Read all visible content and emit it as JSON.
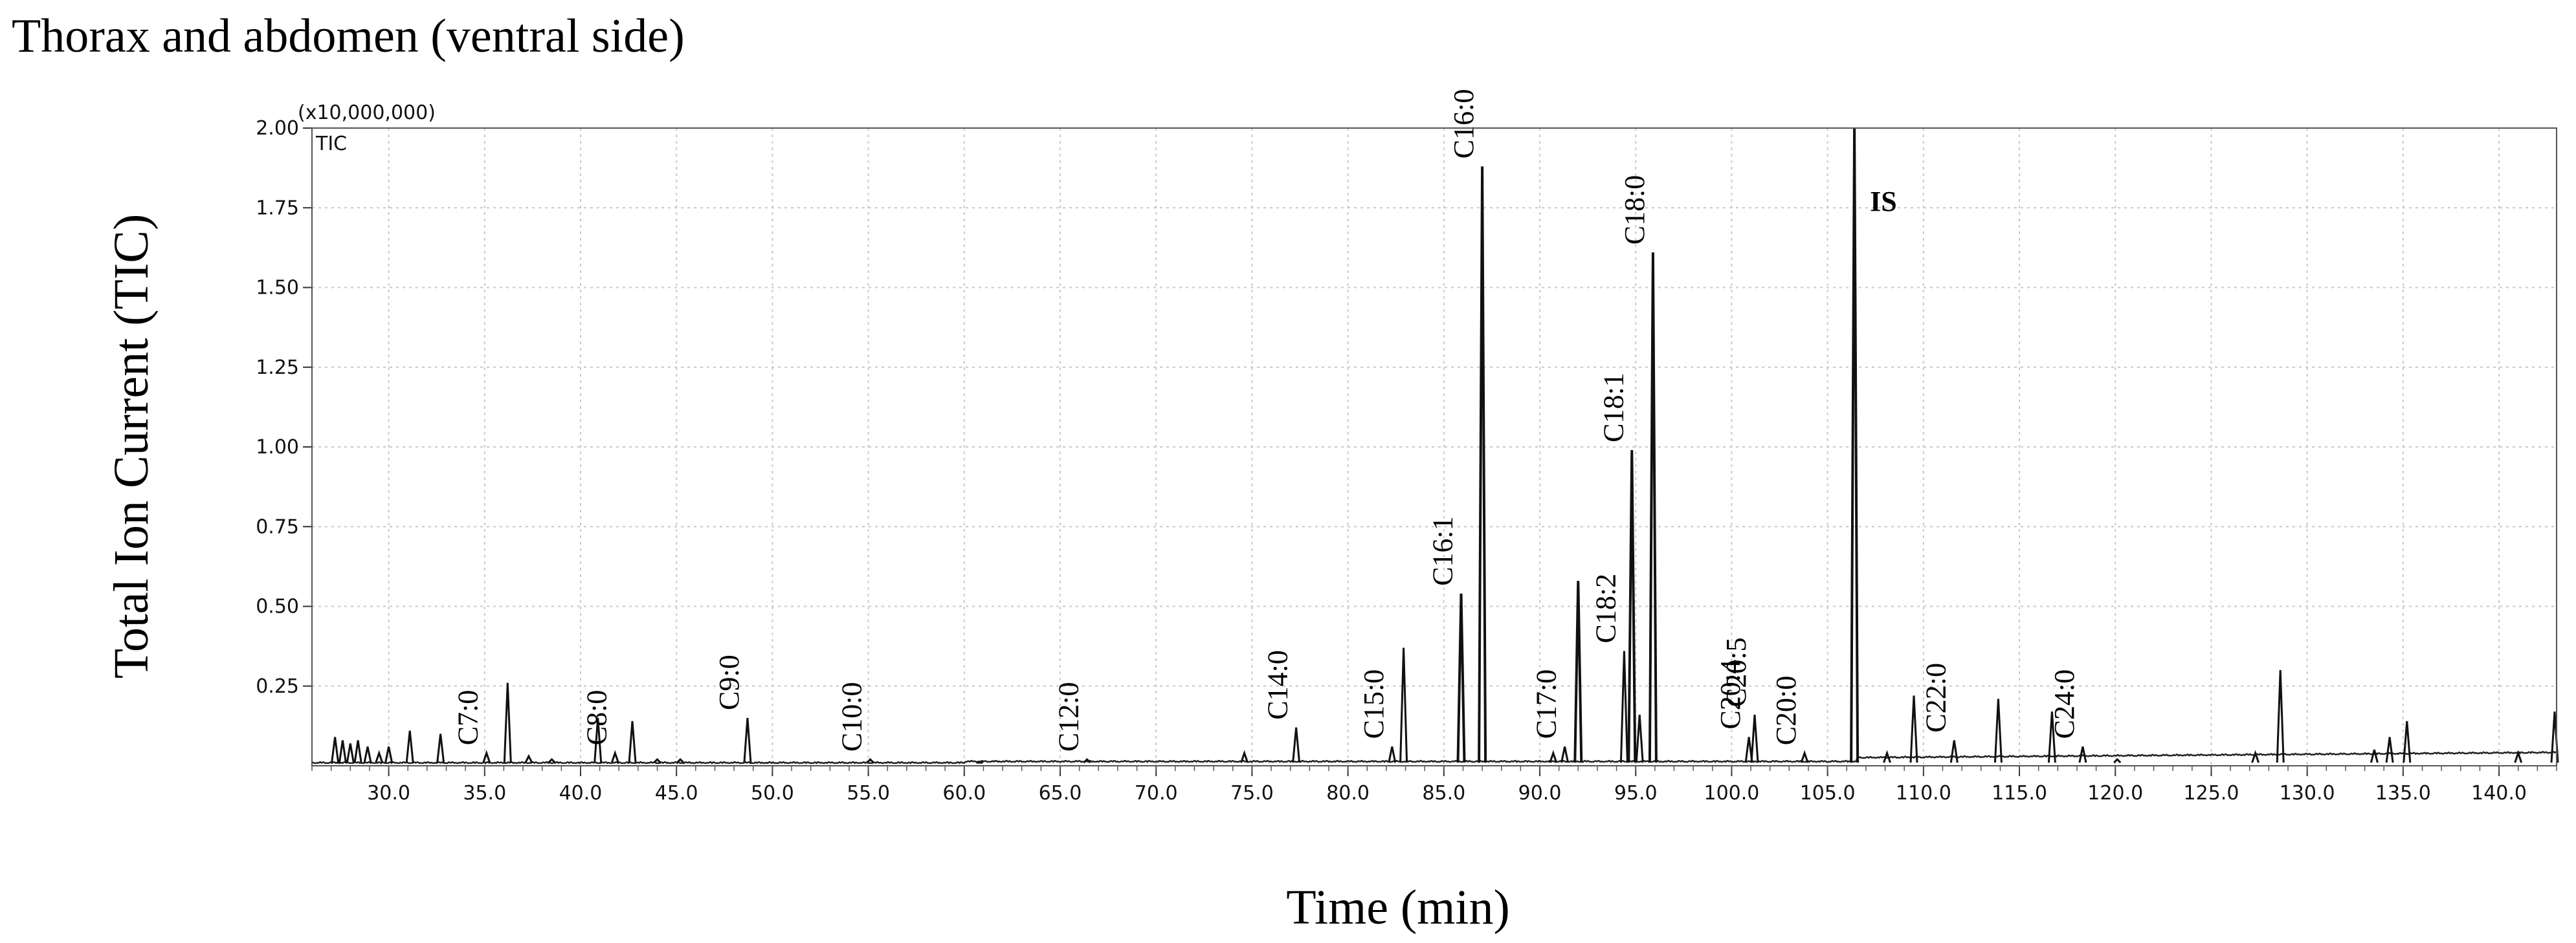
{
  "figure_title": "Thorax and abdomen (ventral side)",
  "chart_data": {
    "type": "line",
    "title": "Thorax and abdomen (ventral side)",
    "xlabel": "Time (min)",
    "ylabel": "Total Ion Current (TIC)",
    "y_multiplier": "(x10,000,000)",
    "trace_label": "TIC",
    "xlim": [
      26.0,
      143.0
    ],
    "ylim": [
      0.0,
      2.0
    ],
    "x_ticks": [
      "30.0",
      "35.0",
      "40.0",
      "45.0",
      "50.0",
      "55.0",
      "60.0",
      "65.0",
      "70.0",
      "75.0",
      "80.0",
      "85.0",
      "90.0",
      "95.0",
      "100.0",
      "105.0",
      "110.0",
      "115.0",
      "120.0",
      "125.0",
      "130.0",
      "135.0",
      "140.0"
    ],
    "y_ticks": [
      "2.00",
      "1.75",
      "1.50",
      "1.25",
      "1.00",
      "0.75",
      "0.50",
      "0.25"
    ],
    "grid": true,
    "peaks": [
      {
        "x": 27.2,
        "y": 0.09
      },
      {
        "x": 27.6,
        "y": 0.08
      },
      {
        "x": 28.0,
        "y": 0.07
      },
      {
        "x": 28.4,
        "y": 0.08
      },
      {
        "x": 28.9,
        "y": 0.06
      },
      {
        "x": 29.5,
        "y": 0.04
      },
      {
        "x": 30.0,
        "y": 0.06
      },
      {
        "x": 31.1,
        "y": 0.11
      },
      {
        "x": 32.7,
        "y": 0.1
      },
      {
        "x": 35.1,
        "y": 0.04,
        "label": "C7:0"
      },
      {
        "x": 36.2,
        "y": 0.26
      },
      {
        "x": 37.3,
        "y": 0.03
      },
      {
        "x": 38.5,
        "y": 0.02
      },
      {
        "x": 40.9,
        "y": 0.15
      },
      {
        "x": 41.8,
        "y": 0.04,
        "label": "C8:0"
      },
      {
        "x": 42.7,
        "y": 0.14
      },
      {
        "x": 44.0,
        "y": 0.02
      },
      {
        "x": 45.2,
        "y": 0.02
      },
      {
        "x": 48.7,
        "y": 0.15,
        "label": "C9:0"
      },
      {
        "x": 55.1,
        "y": 0.02,
        "label": "C10:0"
      },
      {
        "x": 60.8,
        "y": 0.01
      },
      {
        "x": 66.4,
        "y": 0.02,
        "label": "C12:0"
      },
      {
        "x": 74.6,
        "y": 0.04
      },
      {
        "x": 77.3,
        "y": 0.12,
        "label": "C14:0"
      },
      {
        "x": 82.3,
        "y": 0.06,
        "label": "C15:0"
      },
      {
        "x": 82.9,
        "y": 0.37
      },
      {
        "x": 85.9,
        "y": 0.54,
        "label": "C16:1"
      },
      {
        "x": 87.0,
        "y": 1.88,
        "label": "C16:0"
      },
      {
        "x": 90.7,
        "y": 0.04
      },
      {
        "x": 91.3,
        "y": 0.06,
        "label": "C17:0"
      },
      {
        "x": 92.0,
        "y": 0.58
      },
      {
        "x": 94.4,
        "y": 0.36,
        "label": "C18:2"
      },
      {
        "x": 94.8,
        "y": 0.99,
        "label": "C18:1"
      },
      {
        "x": 95.2,
        "y": 0.16
      },
      {
        "x": 95.9,
        "y": 1.61,
        "label": "C18:0"
      },
      {
        "x": 100.9,
        "y": 0.09,
        "label": "C20:4"
      },
      {
        "x": 101.2,
        "y": 0.16,
        "label": "C20:5"
      },
      {
        "x": 103.8,
        "y": 0.04,
        "label": "C20:0"
      },
      {
        "x": 106.4,
        "y": 2.0,
        "label": "IS"
      },
      {
        "x": 108.1,
        "y": 0.04
      },
      {
        "x": 109.5,
        "y": 0.22
      },
      {
        "x": 111.6,
        "y": 0.08,
        "label": "C22:0"
      },
      {
        "x": 113.9,
        "y": 0.21
      },
      {
        "x": 116.7,
        "y": 0.17
      },
      {
        "x": 118.3,
        "y": 0.06,
        "label": "C24:0"
      },
      {
        "x": 120.1,
        "y": 0.02
      },
      {
        "x": 127.3,
        "y": 0.04
      },
      {
        "x": 128.6,
        "y": 0.3
      },
      {
        "x": 133.5,
        "y": 0.05
      },
      {
        "x": 134.3,
        "y": 0.09
      },
      {
        "x": 135.2,
        "y": 0.14
      },
      {
        "x": 141.0,
        "y": 0.04
      },
      {
        "x": 142.9,
        "y": 0.17
      }
    ]
  }
}
